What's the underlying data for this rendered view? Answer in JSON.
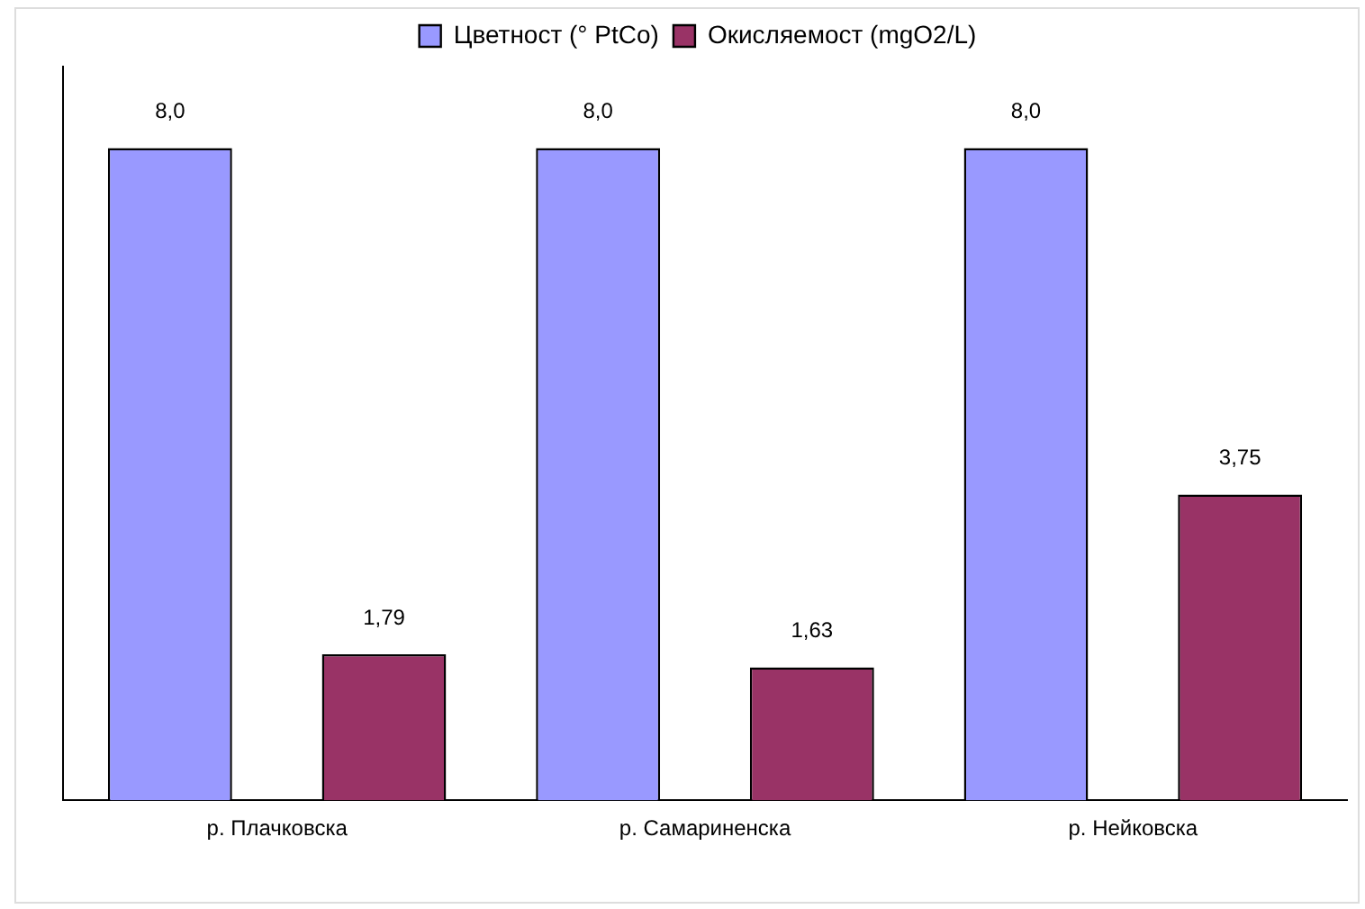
{
  "chart_data": {
    "type": "bar",
    "categories": [
      "р. Плачковска",
      "р. Самариненска",
      "р. Нейковска"
    ],
    "series": [
      {
        "name": "Цветност (° PtCo)",
        "color": "#9999ff",
        "values": [
          8.0,
          8.0,
          8.0
        ],
        "value_labels": [
          "8,0",
          "8,0",
          "8,0"
        ]
      },
      {
        "name": "Окисляемост (mgO2/L)",
        "color": "#993366",
        "values": [
          1.79,
          1.63,
          3.75
        ],
        "value_labels": [
          "1,79",
          "1,63",
          "3,75"
        ]
      }
    ],
    "legend": "top",
    "grid": false,
    "tick_labels": "x"
  }
}
